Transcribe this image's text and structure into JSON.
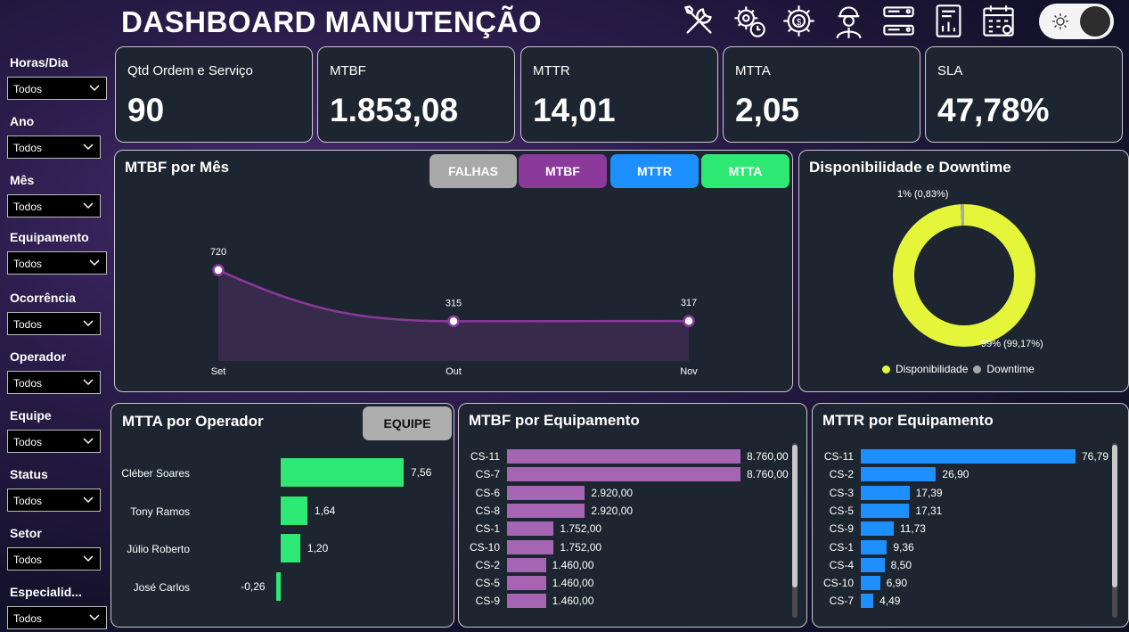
{
  "app": {
    "title": "DASHBOARD MANUTENÇÃO",
    "header_icons": [
      "tools-icon",
      "gear-clock-icon",
      "gear-dollar-icon",
      "engineer-icon",
      "checklist-icon",
      "report-icon",
      "calendar-gear-icon"
    ],
    "theme_toggle_icon": "sun-icon"
  },
  "filters": [
    {
      "label": "Horas/Dia",
      "value": "Todos"
    },
    {
      "label": "Ano",
      "value": "Todos"
    },
    {
      "label": "Mês",
      "value": "Todos"
    },
    {
      "label": "Equipamento",
      "value": "Todos"
    },
    {
      "label": "Ocorrência",
      "value": "Todos"
    },
    {
      "label": "Operador",
      "value": "Todos"
    },
    {
      "label": "Equipe",
      "value": "Todos"
    },
    {
      "label": "Status",
      "value": "Todos"
    },
    {
      "label": "Setor",
      "value": "Todos"
    },
    {
      "label": "Especialid...",
      "value": "Todos"
    }
  ],
  "kpis": [
    {
      "label": "Qtd Ordem e Serviço",
      "value": "90"
    },
    {
      "label": "MTBF",
      "value": "1.853,08"
    },
    {
      "label": "MTTR",
      "value": "14,01"
    },
    {
      "label": "MTTA",
      "value": "2,05"
    },
    {
      "label": "SLA",
      "value": "47,78%"
    }
  ],
  "mtbf_chart": {
    "title": "MTBF por Mês",
    "tabs": [
      {
        "label": "FALHAS",
        "color": "#a9a9a9"
      },
      {
        "label": "MTBF",
        "color": "#8b3a9c"
      },
      {
        "label": "MTTR",
        "color": "#1e8fff"
      },
      {
        "label": "MTTA",
        "color": "#2ee874"
      }
    ]
  },
  "donut": {
    "title": "Disponibilidade e Downtime",
    "label_small": "1% (0,83%)",
    "label_large": "99% (99,17%)",
    "legend": [
      {
        "label": "Disponibilidade",
        "color": "#e4f53a"
      },
      {
        "label": "Downtime",
        "color": "#a9a9a9"
      }
    ]
  },
  "mtta_operador": {
    "title": "MTTA por Operador",
    "button": "EQUIPE"
  },
  "mtbf_equip": {
    "title": "MTBF por Equipamento"
  },
  "mttr_equip": {
    "title": "MTTR por Equipamento"
  },
  "chart_data": [
    {
      "type": "area",
      "title": "MTBF por Mês",
      "categories": [
        "Set",
        "Out",
        "Nov"
      ],
      "values": [
        720,
        315,
        317
      ],
      "value_labels": [
        "720",
        "315",
        "317"
      ],
      "color": "#8b3a9c"
    },
    {
      "type": "pie",
      "title": "Disponibilidade e Downtime",
      "categories": [
        "Disponibilidade",
        "Downtime"
      ],
      "values": [
        99.17,
        0.83
      ]
    },
    {
      "type": "bar",
      "title": "MTTA por Operador",
      "categories": [
        "Cléber Soares",
        "Tony Ramos",
        "Júlio Roberto",
        "José Carlos"
      ],
      "values": [
        7.56,
        1.64,
        1.2,
        -0.26
      ],
      "value_labels": [
        "7,56",
        "1,64",
        "1,20",
        "-0,26"
      ],
      "color": "#2ee874"
    },
    {
      "type": "bar",
      "title": "MTBF por Equipamento",
      "categories": [
        "CS-11",
        "CS-7",
        "CS-6",
        "CS-8",
        "CS-1",
        "CS-10",
        "CS-2",
        "CS-5",
        "CS-9"
      ],
      "values": [
        8760,
        8760,
        2920,
        2920,
        1752,
        1752,
        1460,
        1460,
        1460
      ],
      "value_labels": [
        "8.760,00",
        "8.760,00",
        "2.920,00",
        "2.920,00",
        "1.752,00",
        "1.752,00",
        "1.460,00",
        "1.460,00",
        "1.460,00"
      ],
      "color": "#a565b3"
    },
    {
      "type": "bar",
      "title": "MTTR por Equipamento",
      "categories": [
        "CS-11",
        "CS-2",
        "CS-3",
        "CS-5",
        "CS-9",
        "CS-1",
        "CS-4",
        "CS-10",
        "CS-7"
      ],
      "values": [
        76.79,
        26.9,
        17.39,
        17.31,
        11.73,
        9.36,
        8.5,
        6.9,
        4.49
      ],
      "value_labels": [
        "76,79",
        "26,90",
        "17,39",
        "17,31",
        "11,73",
        "9,36",
        "8,50",
        "6,90",
        "4,49"
      ],
      "color": "#1e8fff"
    }
  ]
}
